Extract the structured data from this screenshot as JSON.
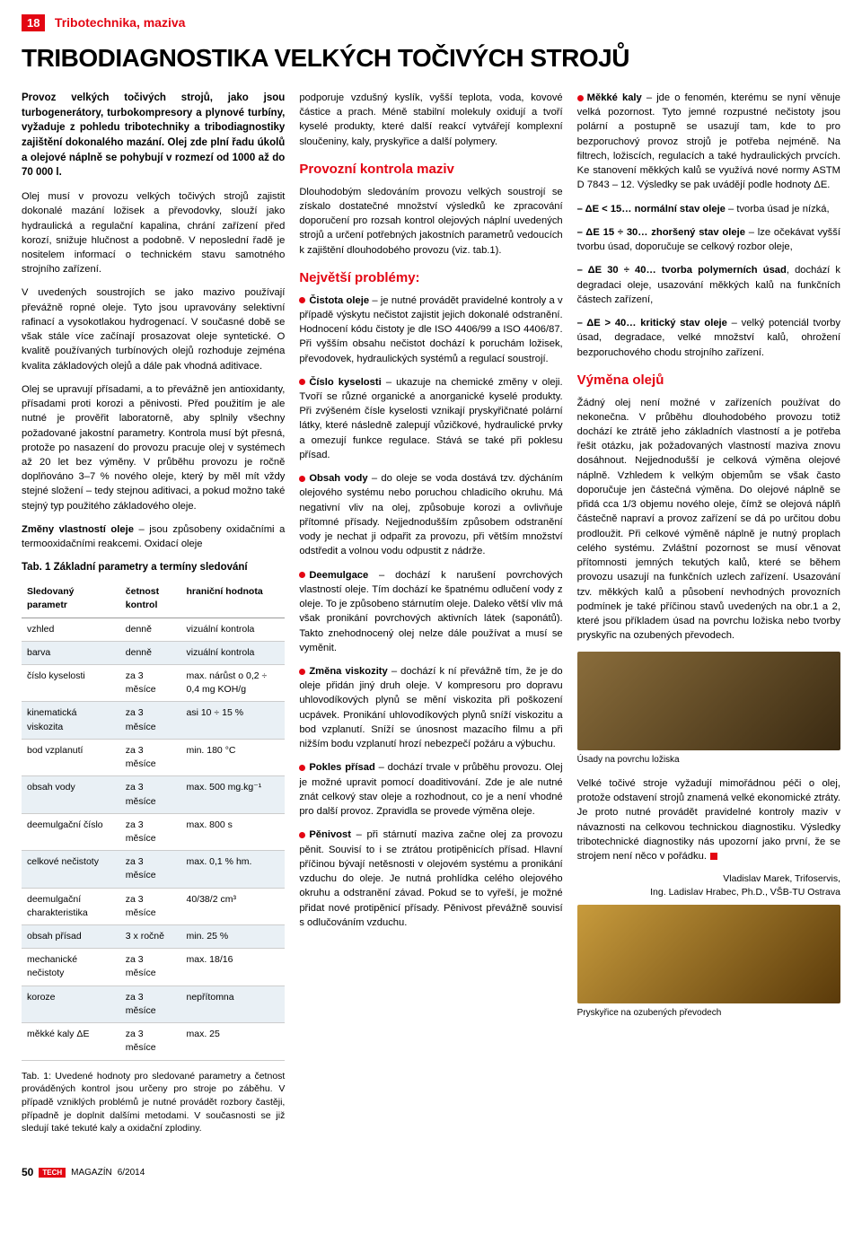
{
  "header": {
    "page_label": "18",
    "section_name": "Tribotechnika, maziva",
    "headline": "TRIBODIAGNOSTIKA VELKÝCH TOČIVÝCH STROJŮ"
  },
  "col1": {
    "intro": "Provoz velkých točivých strojů, jako jsou turbogenerátory, turbokompresory a plynové turbíny, vyžaduje z pohledu tribotechniky a tribodiagnostiky zajištění dokonalého mazání. Olej zde plní řadu úkolů a olejové náplně se pohybují v rozmezí od 1000 až do 70 000 l.",
    "p1": "Olej musí v provozu velkých točivých strojů zajistit dokonalé mazání ložisek a převodovky, slouží jako hydraulická a regulační kapalina, chrání zařízení před korozí, snižuje hlučnost a podobně. V neposlední řadě je nositelem informací o technickém stavu samotného strojního zařízení.",
    "p2": "V uvedených soustrojích se jako mazivo používají převážně ropné oleje. Tyto jsou upravovány selektivní rafinací a vysokotlakou hydrogenací. V současné době se však stále více začínají prosazovat oleje syntetické. O kvalitě používaných turbínových olejů rozhoduje zejména kvalita základových olejů a dále pak vhodná aditivace.",
    "p3": "Olej se upravují přísadami, a to převážně jen antioxidanty, přísadami proti korozi a pěnivosti. Před použitím je ale nutné je prověřit laboratorně, aby splnily všechny požadované jakostní parametry. Kontrola musí být přesná, protože po nasazení do provozu pracuje olej v systémech až 20 let bez výměny. V průběhu provozu je ročně doplňováno 3–7 % nového oleje, který by měl mít vždy stejné složení – tedy stejnou aditivaci, a pokud možno také stejný typ použitého základového oleje.",
    "p4_label": "Změny vlastností oleje",
    "p4_rest": " – jsou způsobeny oxidačními a termooxidačními reakcemi. Oxidací oleje",
    "table_caption": "Tab. 1 Základní parametry a termíny sledování",
    "table_note": "Tab. 1: Uvedené hodnoty pro sledované parametry a četnost prováděných kontrol jsou určeny pro stroje po záběhu. V případě vzniklých problémů je nutné provádět rozbory častěji, případně je doplnit dalšími metodami. V současnosti se již sledují také tekuté kaly a oxidační zplodiny."
  },
  "table": {
    "headers": [
      "Sledovaný parametr",
      "četnost kontrol",
      "hraniční hodnota"
    ],
    "rows": [
      {
        "c": [
          "vzhled",
          "denně",
          "vizuální kontrola"
        ],
        "shade": false
      },
      {
        "c": [
          "barva",
          "denně",
          "vizuální kontrola"
        ],
        "shade": true
      },
      {
        "c": [
          "číslo kyselosti",
          "za 3 měsíce",
          "max. nárůst o 0,2 ÷ 0,4 mg KOH/g"
        ],
        "shade": false
      },
      {
        "c": [
          "kinematická viskozita",
          "za 3 měsíce",
          "asi 10 ÷ 15 %"
        ],
        "shade": true
      },
      {
        "c": [
          "bod vzplanutí",
          "za 3 měsíce",
          "min. 180 °C"
        ],
        "shade": false
      },
      {
        "c": [
          "obsah vody",
          "za 3 měsíce",
          "max. 500 mg.kg⁻¹"
        ],
        "shade": true
      },
      {
        "c": [
          "deemulgační číslo",
          "za 3 měsíce",
          "max. 800 s"
        ],
        "shade": false
      },
      {
        "c": [
          "celkové nečistoty",
          "za 3 měsíce",
          "max. 0,1 % hm."
        ],
        "shade": true
      },
      {
        "c": [
          "deemulgační charakteristika",
          "za 3 měsíce",
          "40/38/2 cm³"
        ],
        "shade": false
      },
      {
        "c": [
          "obsah přísad",
          "3 x ročně",
          "min. 25 %"
        ],
        "shade": true
      },
      {
        "c": [
          "mechanické nečistoty",
          "za 3 měsíce",
          "max. 18/16"
        ],
        "shade": false
      },
      {
        "c": [
          "koroze",
          "za 3 měsíce",
          "nepřítomna"
        ],
        "shade": true
      },
      {
        "c": [
          "měkké kaly ΔE",
          "za 3 měsíce",
          "max. 25"
        ],
        "shade": false
      }
    ]
  },
  "col2": {
    "p0": "podporuje vzdušný kyslík, vyšší teplota, voda, kovové částice a prach. Méně stabilní molekuly oxidují a tvoří kyselé produkty, které další reakcí vytvářejí komplexní sloučeniny, kaly, pryskyřice a další polymery.",
    "h1": "Provozní kontrola maziv",
    "p1": "Dlouhodobým sledováním provozu velkých soustrojí se získalo dostatečné množství výsledků ke zpracování doporučení pro rozsah kontrol olejových náplní uvedených strojů a určení potřebných jakostních parametrů vedoucích k zajištění dlouhodobého provozu (viz. tab.1).",
    "h2": "Největší problémy:",
    "b1_label": "Čistota oleje",
    "b1_text": " – je nutné provádět pravidelné kontroly a v případě výskytu nečistot zajistit jejich dokonalé odstranění. Hodnocení kódu čistoty je dle ISO 4406/99 a ISO 4406/87. Při vyšším obsahu nečistot dochází k poruchám ložisek, převodovek, hydraulických systémů a regulací soustrojí.",
    "b2_label": "Číslo kyselosti",
    "b2_text": " – ukazuje na chemické změny v oleji. Tvoří se různé organické a anorganické kyselé produkty. Při zvýšeném čísle kyselosti vznikají pryskyřičnaté polární látky, které následně zalepují vůzičkové, hydraulické prvky a omezují funkce regulace. Stává se také při poklesu přísad.",
    "b3_label": "Obsah vody",
    "b3_text": " – do oleje se voda dostává tzv. dýcháním olejového systému nebo poruchou chladicího okruhu. Má negativní vliv na olej, způsobuje korozi a ovlivňuje přítomné přísady. Nejjednodušším způsobem odstranění vody je nechat ji odpařit za provozu, při větším množství odstředit a volnou vodu odpustit z nádrže.",
    "b4_label": "Deemulgace",
    "b4_text": " – dochází k narušení povrchových vlastností oleje. Tím dochází ke špatnému odlučení vody z oleje. To je způsobeno stárnutím oleje. Daleko větší vliv má však pronikání povrchových aktivních látek (saponátů). Takto znehodnocený olej nelze dále používat a musí se vyměnit.",
    "b5_label": "Změna viskozity",
    "b5_text": " – dochází k ní převážně tím, že je do oleje přidán jiný druh oleje. V kompresoru pro dopravu uhlovodíkových plynů se mění viskozita při poškození ucpávek. Pronikání uhlovodíkových plynů sníží viskozitu a bod vzplanutí. Sníží se únosnost mazacího filmu a při nižším bodu vzplanutí hrozí nebezpečí požáru a výbuchu.",
    "b6_label": "Pokles přísad",
    "b6_text": " – dochází trvale v průběhu provozu. Olej je možné upravit pomocí doaditivování. Zde je ale nutné znát celkový stav oleje a rozhodnout, co je a není vhodné pro další provoz. Zpravidla se provede výměna oleje.",
    "b7_label": "Pěnivost",
    "b7_text": " – při stárnutí maziva začne olej za provozu pěnit. Souvisí to i se ztrátou protipěnicích přísad. Hlavní příčinou bývají netěsnosti v olejovém systému a pronikání vzduchu do oleje. Je nutná prohlídka celého olejového okruhu a odstranění závad. Pokud se to vyřeší, je možné přidat nové protipěnicí přísady. Pěnivost převážně souvisí s odlučováním vzduchu."
  },
  "col3": {
    "b1_label": "Měkké kaly",
    "b1_text": " – jde o fenomén, kterému se nyní věnuje velká pozornost. Tyto jemné rozpustné nečistoty jsou polární a postupně se usazují tam, kde to pro bezporuchový provoz strojů je potřeba nejméně. Na filtrech, ložiscích, regulacích a také hydraulických prvcích. Ke stanovení měkkých kalů se využívá nové normy ASTM D 7843 – 12. Výsledky se pak uvádějí podle hodnoty ΔE.",
    "r1_label": "– ΔE < 15… normální stav oleje",
    "r1_text": " – tvorba úsad je nízká,",
    "r2_label": "– ΔE 15 ÷ 30… zhoršený stav oleje",
    "r2_text": " – lze očekávat vyšší tvorbu úsad, doporučuje se celkový rozbor oleje,",
    "r3_label": "– ΔE 30 ÷ 40… tvorba polymerních úsad",
    "r3_text": ", dochází k degradaci oleje, usazování měkkých kalů na funkčních částech zařízení,",
    "r4_label": "– ΔE > 40… kritický stav oleje",
    "r4_text": " – velký potenciál tvorby úsad, degradace, velké množství kalů, ohrožení bezporuchového chodu strojního zařízení.",
    "h1": "Výměna olejů",
    "p1": "Žádný olej není možné v zařízeních používat do nekonečna. V průběhu dlouhodobého provozu totiž dochází ke ztrátě jeho základních vlastností a je potřeba řešit otázku, jak požadovaných vlastností maziva znovu dosáhnout. Nejjednodušší je celková výměna olejové náplně. Vzhledem k velkým objemům se však často doporučuje jen částečná výměna. Do olejové náplně se přidá cca 1/3 objemu nového oleje, čímž se olejová náplň částečně napraví a provoz zařízení se dá po určitou dobu prodloužit. Při celkové výměně náplně je nutný proplach celého systému. Zvláštní pozornost se musí věnovat přítomnosti jemných tekutých kalů, které se během provozu usazují na funkčních uzlech zařízení. Usazování tzv. měkkých kalů a působení nevhodných provozních podmínek je také příčinou stavů uvedených na obr.1 a 2, které jsou příkladem úsad na povrchu ložiska nebo tvorby pryskyřic na ozubených převodech.",
    "img1_caption": "Úsady na povrchu ložiska",
    "p2": "Velké točivé stroje vyžadují mimořádnou péči o olej, protože odstavení strojů znamená velké ekonomické ztráty. Je proto nutné provádět pravidelné kontroly maziv v návaznosti na celkovou technickou diagnostiku. Výsledky tribotechnické diagnostiky nás upozorní jako první, že se strojem není něco v pořádku.",
    "author1": "Vladislav Marek, Trifoservis,",
    "author2": "Ing. Ladislav Hrabec, Ph.D., VŠB-TU Ostrava",
    "img2_caption": "Pryskyřice na ozubených převodech"
  },
  "footer": {
    "page": "50",
    "brand": "TECH",
    "mag": "MAGAZÍN",
    "issue": "6/2014"
  }
}
